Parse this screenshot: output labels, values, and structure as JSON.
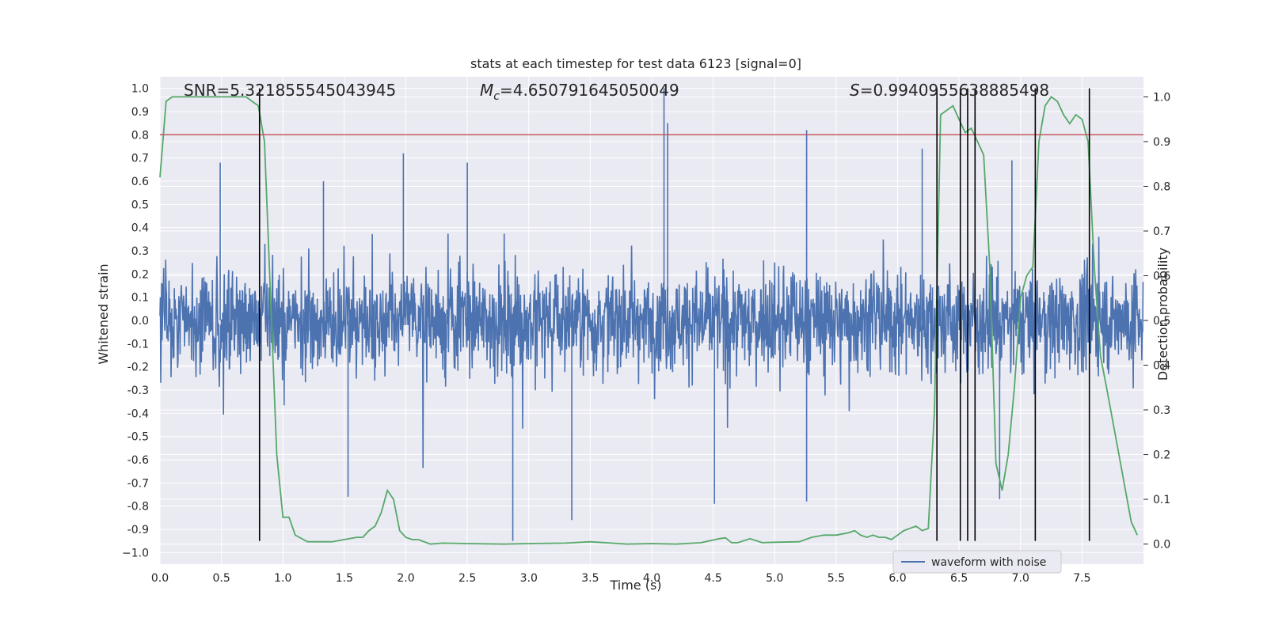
{
  "chart_data": {
    "type": "line",
    "title": "stats at each timestep for test data 6123 [signal=0]",
    "xlabel": "Time (s)",
    "ylabel": "Whitened strain",
    "y2label": "Detection probability",
    "xlim": [
      0.0,
      8.0
    ],
    "ylim": [
      -1.05,
      1.05
    ],
    "y2lim": [
      -0.045,
      1.045
    ],
    "x_ticks": [
      0.0,
      0.5,
      1.0,
      1.5,
      2.0,
      2.5,
      3.0,
      3.5,
      4.0,
      4.5,
      5.0,
      5.5,
      6.0,
      6.5,
      7.0,
      7.5
    ],
    "x_tick_labels": [
      "0.0",
      "0.5",
      "1.0",
      "1.5",
      "2.0",
      "2.5",
      "3.0",
      "3.5",
      "4.0",
      "4.5",
      "5.0",
      "5.5",
      "6.0",
      "6.5",
      "7.0",
      "7.5"
    ],
    "y_ticks": [
      1.0,
      0.9,
      0.8,
      0.7,
      0.6,
      0.5,
      0.4,
      0.3,
      0.2,
      0.1,
      0.0,
      -0.1,
      -0.2,
      -0.3,
      -0.4,
      -0.5,
      -0.6,
      -0.7,
      -0.8,
      -0.9,
      -1.0
    ],
    "y_tick_labels": [
      "1.0",
      "0.9",
      "0.8",
      "0.7",
      "0.6",
      "0.5",
      "0.4",
      "0.3",
      "0.2",
      "0.1",
      "0.0",
      "-0.1",
      "-0.2",
      "-0.3",
      "-0.4",
      "-0.5",
      "-0.6",
      "-0.7",
      "-0.8",
      "-0.9",
      "−1.0"
    ],
    "y2_ticks": [
      1.0,
      0.9,
      0.8,
      0.7,
      0.6,
      0.5,
      0.4,
      0.3,
      0.2,
      0.1,
      0.0
    ],
    "y2_tick_labels": [
      "1.0",
      "0.9",
      "0.8",
      "0.7",
      "0.6",
      "0.5",
      "0.4",
      "0.3",
      "0.2",
      "0.1",
      "0.0"
    ],
    "grid": true,
    "annotations": {
      "snr": "SNR=5.321855545043945",
      "mc_prefix": "M",
      "mc_sub": "c",
      "mc_value": "=4.650791645050049",
      "s_prefix": "S",
      "s_value": "=0.9940955638885498"
    },
    "threshold": 0.8,
    "event_lines_x": [
      0.81,
      6.32,
      6.51,
      6.57,
      6.63,
      7.12,
      7.56
    ],
    "waveform": {
      "name": "waveform with noise",
      "description_envelope_std": 0.15,
      "peaks": [
        {
          "x": 0.49,
          "y": 0.68
        },
        {
          "x": 0.81,
          "y": -0.77
        },
        {
          "x": 1.33,
          "y": 0.6
        },
        {
          "x": 1.53,
          "y": -0.76
        },
        {
          "x": 1.98,
          "y": 0.72
        },
        {
          "x": 2.5,
          "y": 0.68
        },
        {
          "x": 2.87,
          "y": -0.95
        },
        {
          "x": 3.35,
          "y": -0.86
        },
        {
          "x": 4.1,
          "y": 1.0
        },
        {
          "x": 4.13,
          "y": 0.85
        },
        {
          "x": 4.51,
          "y": -0.79
        },
        {
          "x": 5.26,
          "y": 0.82
        },
        {
          "x": 5.26,
          "y": -0.78
        },
        {
          "x": 6.2,
          "y": 0.74
        },
        {
          "x": 6.83,
          "y": -0.77
        },
        {
          "x": 6.93,
          "y": 0.69
        }
      ]
    },
    "probability": {
      "name": "detection probability",
      "x": [
        0.0,
        0.05,
        0.1,
        0.2,
        0.3,
        0.4,
        0.5,
        0.6,
        0.7,
        0.75,
        0.8,
        0.85,
        0.9,
        0.95,
        1.0,
        1.05,
        1.1,
        1.2,
        1.4,
        1.5,
        1.6,
        1.65,
        1.7,
        1.75,
        1.8,
        1.85,
        1.9,
        1.95,
        2.0,
        2.05,
        2.1,
        2.2,
        2.3,
        2.5,
        2.8,
        3.0,
        3.3,
        3.5,
        3.8,
        4.0,
        4.2,
        4.4,
        4.55,
        4.6,
        4.65,
        4.7,
        4.8,
        4.9,
        5.0,
        5.2,
        5.3,
        5.4,
        5.5,
        5.6,
        5.65,
        5.7,
        5.75,
        5.8,
        5.85,
        5.9,
        5.95,
        6.0,
        6.05,
        6.1,
        6.15,
        6.2,
        6.25,
        6.3,
        6.35,
        6.4,
        6.45,
        6.5,
        6.55,
        6.6,
        6.65,
        6.7,
        6.75,
        6.8,
        6.85,
        6.9,
        6.95,
        7.0,
        7.05,
        7.1,
        7.15,
        7.2,
        7.25,
        7.3,
        7.35,
        7.4,
        7.45,
        7.5,
        7.55,
        7.6,
        7.65,
        7.7,
        7.8,
        7.9,
        7.95
      ],
      "y": [
        0.82,
        0.99,
        1.0,
        1.0,
        1.0,
        1.0,
        1.0,
        1.0,
        1.0,
        0.99,
        0.98,
        0.9,
        0.55,
        0.2,
        0.06,
        0.06,
        0.02,
        0.005,
        0.005,
        0.01,
        0.015,
        0.015,
        0.03,
        0.04,
        0.07,
        0.12,
        0.1,
        0.03,
        0.015,
        0.01,
        0.01,
        0.0,
        0.002,
        0.001,
        0.0,
        0.001,
        0.002,
        0.005,
        0.0,
        0.001,
        0.0,
        0.003,
        0.012,
        0.014,
        0.003,
        0.003,
        0.012,
        0.003,
        0.004,
        0.005,
        0.015,
        0.02,
        0.02,
        0.025,
        0.03,
        0.02,
        0.015,
        0.02,
        0.015,
        0.015,
        0.01,
        0.02,
        0.03,
        0.035,
        0.04,
        0.03,
        0.035,
        0.3,
        0.96,
        0.97,
        0.98,
        0.95,
        0.92,
        0.93,
        0.9,
        0.87,
        0.62,
        0.18,
        0.12,
        0.2,
        0.35,
        0.55,
        0.6,
        0.62,
        0.9,
        0.98,
        1.0,
        0.99,
        0.96,
        0.94,
        0.96,
        0.95,
        0.9,
        0.62,
        0.42,
        0.35,
        0.2,
        0.05,
        0.02
      ]
    },
    "legend": {
      "placement": "lower-right",
      "label": "waveform with noise"
    }
  },
  "colors": {
    "background": "#eaeaf2",
    "grid": "#ffffff",
    "waveform": "#4c72b0",
    "probability": "#55a868",
    "threshold": "#c44e52",
    "event_line": "#000000",
    "text": "#262626"
  }
}
